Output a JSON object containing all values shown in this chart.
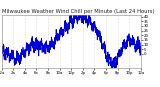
{
  "title": "Milwaukee Weather Wind Chill per Minute (Last 24 Hours)",
  "line_color": "#0000dd",
  "background_color": "#ffffff",
  "plot_bg_color": "#ffffff",
  "ylim": [
    -15,
    42
  ],
  "ytick_values": [
    0,
    5,
    10,
    15,
    20,
    25,
    30,
    35,
    40
  ],
  "num_points": 1440,
  "title_fontsize": 3.8,
  "tick_fontsize": 2.8,
  "line_width": 0.55,
  "grid_color": "#bbbbbb",
  "grid_style": "dotted",
  "num_xticks": 13
}
